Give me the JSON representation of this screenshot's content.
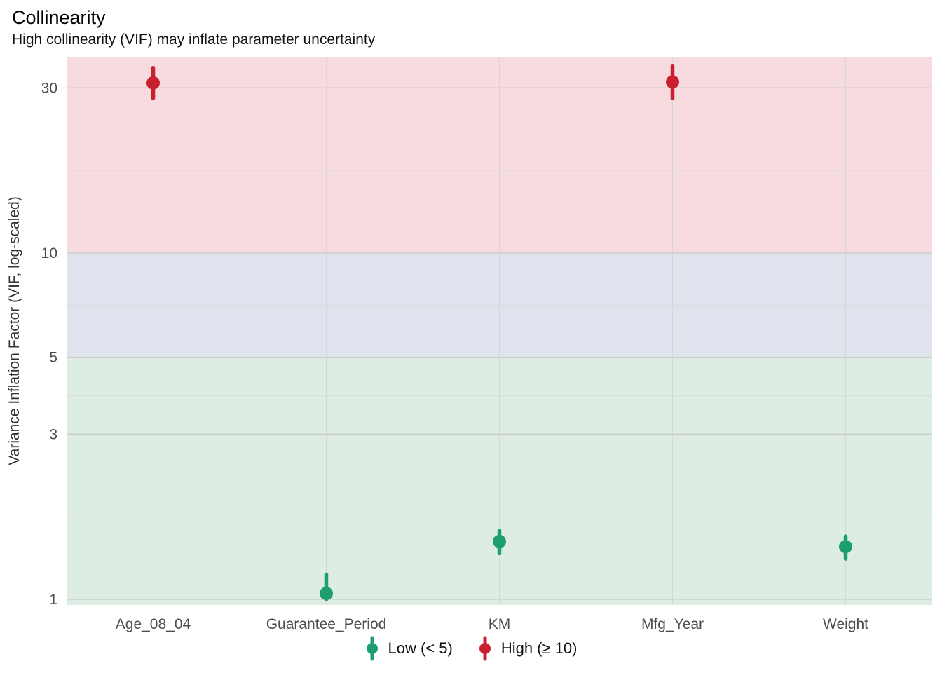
{
  "title": "Collinearity",
  "subtitle": "High collinearity (VIF) may inflate parameter uncertainty",
  "chart_data": {
    "type": "pointrange",
    "title": "Collinearity",
    "subtitle": "High collinearity (VIF) may inflate parameter uncertainty",
    "xlabel": "",
    "ylabel": "Variance Inflation Factor (VIF, log-scaled)",
    "yscale": "log",
    "ylim": [
      0.96,
      37
    ],
    "yticks": [
      1,
      3,
      5,
      10,
      30
    ],
    "minor_gridlines": [
      1.73,
      3.87,
      7.07,
      17.32
    ],
    "grid": true,
    "legend_position": "bottom",
    "categories": [
      "Age_08_04",
      "Guarantee_Period",
      "KM",
      "Mfg_Year",
      "Weight"
    ],
    "points": [
      {
        "category": "Age_08_04",
        "value": 31.0,
        "lo": 28.0,
        "hi": 34.3,
        "level": "High"
      },
      {
        "category": "Guarantee_Period",
        "value": 1.04,
        "lo": 1.0,
        "hi": 1.18,
        "level": "Low"
      },
      {
        "category": "KM",
        "value": 1.47,
        "lo": 1.36,
        "hi": 1.58,
        "level": "Low"
      },
      {
        "category": "Mfg_Year",
        "value": 31.2,
        "lo": 28.0,
        "hi": 34.6,
        "level": "High"
      },
      {
        "category": "Weight",
        "value": 1.42,
        "lo": 1.31,
        "hi": 1.52,
        "level": "Low"
      }
    ],
    "bands": [
      {
        "label": "low",
        "from": "min",
        "to": 5,
        "color": "#deede3"
      },
      {
        "label": "moderate",
        "from": 5,
        "to": 10,
        "color": "#dfe3ee"
      },
      {
        "label": "high",
        "from": 10,
        "to": "max",
        "color": "#f7dbde"
      }
    ],
    "level_colors": {
      "Low": "#1d9e6e",
      "High": "#c8202e"
    },
    "legend": [
      {
        "label": "Low (< 5)",
        "level": "Low",
        "color": "#1d9e6e"
      },
      {
        "label": "High (≥ 10)",
        "level": "High",
        "color": "#c8202e"
      }
    ]
  }
}
